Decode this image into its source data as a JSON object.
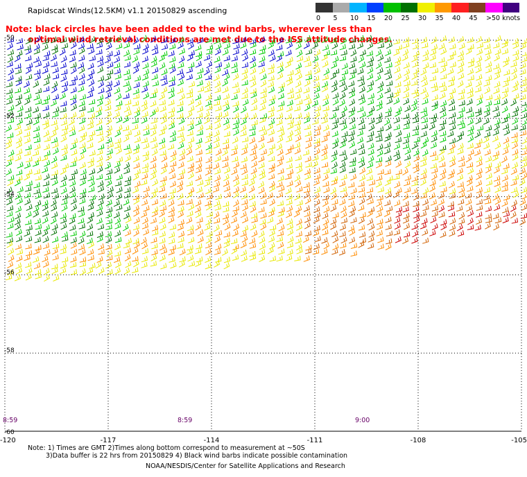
{
  "title": "Rapidscat Winds(12.5KM) v1.1 20150829 ascending",
  "note": {
    "line1": "Note: black circles have been added to the wind barbs, wherever less than",
    "line2": "optimal wind retrieval conditions are met due to the ISS attitude changes."
  },
  "legend": {
    "bins": [
      {
        "label": "0",
        "color": "#333333"
      },
      {
        "label": "5",
        "color": "#aaaaaa"
      },
      {
        "label": "10",
        "color": "#00b4ff"
      },
      {
        "label": "15",
        "color": "#0040ff"
      },
      {
        "label": "20",
        "color": "#00c000"
      },
      {
        "label": "25",
        "color": "#007000"
      },
      {
        "label": "30",
        "color": "#f0f000"
      },
      {
        "label": "35",
        "color": "#ff9900"
      },
      {
        "label": "40",
        "color": "#ff2020"
      },
      {
        "label": "45",
        "color": "#804020"
      },
      {
        "label": ">50 knots",
        "color": "#ff00ff"
      },
      {
        "label": "",
        "color": "#400080"
      }
    ],
    "colors": {
      "blue": "#0000cc",
      "lime": "#00cc00",
      "darkgreen": "#007000",
      "yellow": "#e8e800",
      "orange": "#ff8c00",
      "darkorange": "#d06000",
      "red": "#cc0000"
    }
  },
  "axes": {
    "lat_labels": [
      "-50",
      "-52",
      "-54",
      "-56",
      "-58",
      "-60"
    ],
    "lon_labels": [
      "-120",
      "-117",
      "-114",
      "-111",
      "-108",
      "-105"
    ]
  },
  "times": [
    "8:59",
    "8:59",
    "9:00"
  ],
  "footnotes": {
    "line1": "Note: 1) Times are GMT 2)Times along bottom correspond to measurement at ~50S",
    "line2": "3)Data buffer is 22 hrs from 20150829 4) Black wind barbs indicate possible contamination",
    "credit": "NOAA/NESDIS/Center for Satellite Applications and Research"
  }
}
